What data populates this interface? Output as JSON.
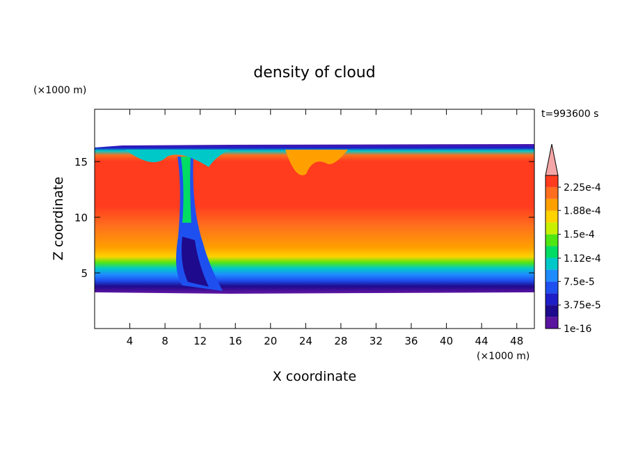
{
  "chart_data": {
    "type": "contour",
    "title": "density of cloud",
    "xlabel": "X coordinate",
    "ylabel": "Z coordinate",
    "x_unit": "(×1000 m)",
    "y_unit": "(×1000 m)",
    "annotation": "t=993600 s",
    "xlim": [
      0,
      50
    ],
    "xticks": [
      4,
      8,
      12,
      16,
      20,
      24,
      28,
      32,
      36,
      40,
      44,
      48
    ],
    "ylim": [
      0,
      19.7
    ],
    "yticks": [
      5,
      10,
      15
    ],
    "colorbar": {
      "lim": [
        1e-16,
        0.00024375
      ],
      "extend": "max",
      "extend_color": "#f4a6a6",
      "ticks": [
        1e-16,
        {
          "value": 3.75e-05,
          "label": "3.75e-5"
        },
        {
          "value": 7.5e-05,
          "label": "7.5e-5"
        },
        {
          "value": 0.000112,
          "label": "1.12e-4"
        },
        {
          "value": 0.00015,
          "label": "1.5e-4"
        },
        {
          "value": 0.000188,
          "label": "1.88e-4"
        },
        {
          "value": 0.000225,
          "label": "2.25e-4"
        }
      ],
      "colors": [
        "#5a14a0",
        "#1e0a8c",
        "#1e1ec8",
        "#1e50f0",
        "#1e8cff",
        "#00c8c8",
        "#00dc64",
        "#50e614",
        "#c8f000",
        "#ffd200",
        "#ffa000",
        "#ff6e1e",
        "#ff3c1e"
      ]
    }
  }
}
